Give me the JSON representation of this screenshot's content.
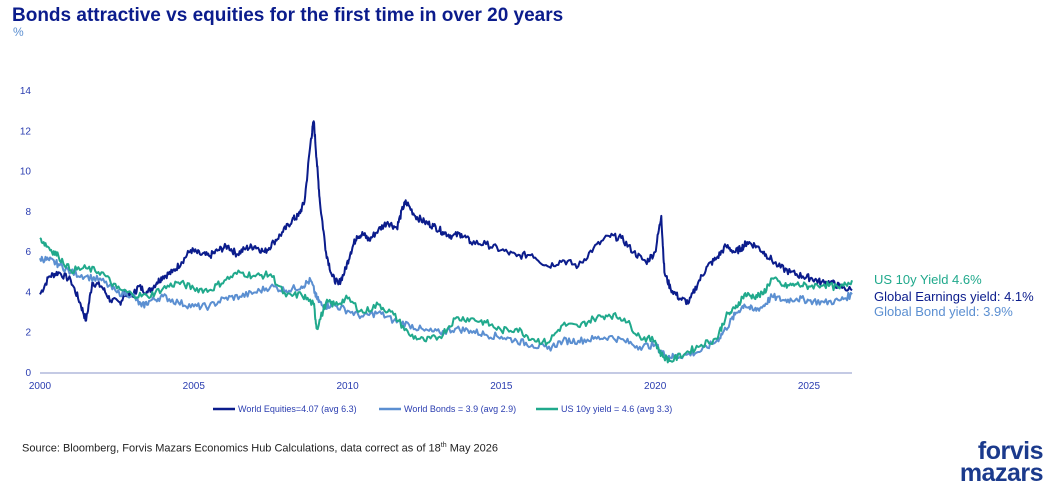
{
  "title": "Bonds attractive vs equities for the first time in over 20 years",
  "unit": "%",
  "source": {
    "text": "Source: Bloomberg, Forvis Mazars Economics Hub Calculations, data correct as of 18",
    "sup": "th",
    "tail": " May 2026"
  },
  "logo": {
    "line1": "forvis",
    "line2": "mazars"
  },
  "annotations": [
    {
      "text": "US 10y Yield 4.6%",
      "color": "#20a98c"
    },
    {
      "text": "Global Earnings yield: 4.1%",
      "color": "#0b1c8c"
    },
    {
      "text": "Global Bond yield: 3.9%",
      "color": "#5b8fd1"
    }
  ],
  "chart_data": {
    "type": "line",
    "xlim": [
      2000,
      2026.4
    ],
    "ylim": [
      0,
      14
    ],
    "x_ticks": [
      2000,
      2005,
      2010,
      2015,
      2020,
      2025
    ],
    "y_ticks": [
      0,
      2,
      4,
      6,
      8,
      10,
      12,
      14
    ],
    "grid": false,
    "legend_position": "bottom",
    "series": [
      {
        "name": "World Equities=4.07 (avg 6.3)",
        "color": "#0b1c8c",
        "x": [
          2000.0,
          2000.3,
          2000.6,
          2001.0,
          2001.3,
          2001.5,
          2001.7,
          2002.0,
          2002.3,
          2002.6,
          2002.8,
          2003.0,
          2003.2,
          2003.5,
          2003.8,
          2004.0,
          2004.3,
          2004.6,
          2004.9,
          2005.2,
          2005.5,
          2005.8,
          2006.1,
          2006.4,
          2006.7,
          2007.0,
          2007.3,
          2007.6,
          2007.9,
          2008.2,
          2008.4,
          2008.6,
          2008.8,
          2008.9,
          2009.0,
          2009.1,
          2009.3,
          2009.5,
          2009.7,
          2009.9,
          2010.1,
          2010.3,
          2010.5,
          2010.7,
          2011.0,
          2011.3,
          2011.6,
          2011.8,
          2011.9,
          2012.2,
          2012.5,
          2012.8,
          2013.1,
          2013.4,
          2013.7,
          2014.0,
          2014.5,
          2015.0,
          2015.5,
          2016.0,
          2016.5,
          2017.0,
          2017.5,
          2018.0,
          2018.5,
          2018.9,
          2019.3,
          2019.7,
          2020.0,
          2020.2,
          2020.3,
          2020.5,
          2020.8,
          2021.1,
          2021.4,
          2021.7,
          2022.0,
          2022.3,
          2022.6,
          2022.8,
          2023.0,
          2023.3,
          2023.6,
          2024.0,
          2024.4,
          2024.8,
          2025.1,
          2025.4,
          2025.7,
          2026.0,
          2026.4
        ],
        "y": [
          3.9,
          4.8,
          5.0,
          4.6,
          3.5,
          2.6,
          4.5,
          4.3,
          3.6,
          3.5,
          4.0,
          3.8,
          4.3,
          4.0,
          4.5,
          4.8,
          5.0,
          5.5,
          6.1,
          5.9,
          5.8,
          6.1,
          6.3,
          5.9,
          6.2,
          6.3,
          6.0,
          6.5,
          7.0,
          7.6,
          7.8,
          8.5,
          11.5,
          12.5,
          10.5,
          8.5,
          6.0,
          4.8,
          4.4,
          5.0,
          6.0,
          6.8,
          6.9,
          6.6,
          7.1,
          7.5,
          7.2,
          8.2,
          8.5,
          7.8,
          7.5,
          7.3,
          7.0,
          6.8,
          6.9,
          6.5,
          6.4,
          6.1,
          5.8,
          5.9,
          5.3,
          5.6,
          5.3,
          6.2,
          6.8,
          6.7,
          6.0,
          5.5,
          6.0,
          7.8,
          5.0,
          4.2,
          3.7,
          3.5,
          4.5,
          5.3,
          5.7,
          6.3,
          6.0,
          6.2,
          6.5,
          6.3,
          5.9,
          5.3,
          5.0,
          4.8,
          4.7,
          4.5,
          4.5,
          4.3,
          4.1
        ]
      },
      {
        "name": "World Bonds = 3.9 (avg 2.9)",
        "color": "#5b8fd1",
        "x": [
          2000.0,
          2000.3,
          2000.6,
          2001.0,
          2001.5,
          2002.0,
          2002.5,
          2003.0,
          2003.3,
          2003.6,
          2004.0,
          2004.5,
          2005.0,
          2005.5,
          2006.0,
          2006.5,
          2007.0,
          2007.5,
          2008.0,
          2008.5,
          2008.8,
          2009.0,
          2009.2,
          2009.5,
          2010.0,
          2010.5,
          2011.0,
          2011.5,
          2012.0,
          2012.5,
          2013.0,
          2013.5,
          2014.0,
          2014.5,
          2015.0,
          2015.5,
          2016.0,
          2016.5,
          2017.0,
          2017.5,
          2018.0,
          2018.5,
          2019.0,
          2019.5,
          2020.0,
          2020.3,
          2020.6,
          2021.0,
          2021.5,
          2022.0,
          2022.3,
          2022.6,
          2022.9,
          2023.2,
          2023.5,
          2023.8,
          2024.2,
          2024.6,
          2025.0,
          2025.5,
          2026.0,
          2026.4
        ],
        "y": [
          5.7,
          5.6,
          5.4,
          5.0,
          4.8,
          4.6,
          4.0,
          3.9,
          3.3,
          3.6,
          3.8,
          3.5,
          3.3,
          3.3,
          3.7,
          3.8,
          4.0,
          4.3,
          4.1,
          4.3,
          4.6,
          3.7,
          3.3,
          3.4,
          3.1,
          2.8,
          3.0,
          2.6,
          2.4,
          2.1,
          2.0,
          2.2,
          2.1,
          1.9,
          1.8,
          1.6,
          1.4,
          1.2,
          1.6,
          1.6,
          1.7,
          1.8,
          1.6,
          1.3,
          1.4,
          0.9,
          0.8,
          0.9,
          1.1,
          1.6,
          2.2,
          2.9,
          3.4,
          3.1,
          3.3,
          3.8,
          3.6,
          3.7,
          3.6,
          3.5,
          3.6,
          3.9
        ]
      },
      {
        "name": "US 10y yield = 4.6 (avg 3.3)",
        "color": "#20a98c",
        "x": [
          2000.0,
          2000.3,
          2000.6,
          2001.0,
          2001.5,
          2002.0,
          2002.5,
          2003.0,
          2003.5,
          2004.0,
          2004.5,
          2005.0,
          2005.5,
          2006.0,
          2006.5,
          2007.0,
          2007.5,
          2008.0,
          2008.5,
          2008.9,
          2009.0,
          2009.3,
          2009.6,
          2010.0,
          2010.5,
          2011.0,
          2011.5,
          2012.0,
          2012.5,
          2013.0,
          2013.5,
          2014.0,
          2014.5,
          2015.0,
          2015.5,
          2016.0,
          2016.5,
          2017.0,
          2017.5,
          2018.0,
          2018.5,
          2019.0,
          2019.5,
          2020.0,
          2020.2,
          2020.5,
          2021.0,
          2021.5,
          2022.0,
          2022.3,
          2022.6,
          2022.9,
          2023.2,
          2023.5,
          2023.8,
          2024.2,
          2024.6,
          2025.0,
          2025.5,
          2026.0,
          2026.4
        ],
        "y": [
          6.7,
          6.2,
          5.8,
          5.1,
          5.2,
          5.0,
          4.2,
          3.9,
          3.8,
          4.2,
          4.5,
          4.2,
          4.1,
          4.6,
          5.0,
          4.8,
          4.9,
          3.8,
          3.9,
          3.4,
          2.2,
          3.5,
          3.4,
          3.7,
          3.0,
          3.4,
          2.9,
          1.9,
          1.6,
          1.8,
          2.7,
          2.7,
          2.5,
          2.1,
          2.2,
          1.7,
          1.5,
          2.4,
          2.3,
          2.7,
          2.9,
          2.7,
          1.8,
          1.6,
          0.9,
          0.6,
          1.0,
          1.4,
          1.7,
          2.8,
          3.2,
          3.9,
          3.8,
          3.9,
          4.7,
          4.3,
          4.4,
          4.3,
          4.4,
          4.2,
          4.6
        ]
      }
    ]
  }
}
